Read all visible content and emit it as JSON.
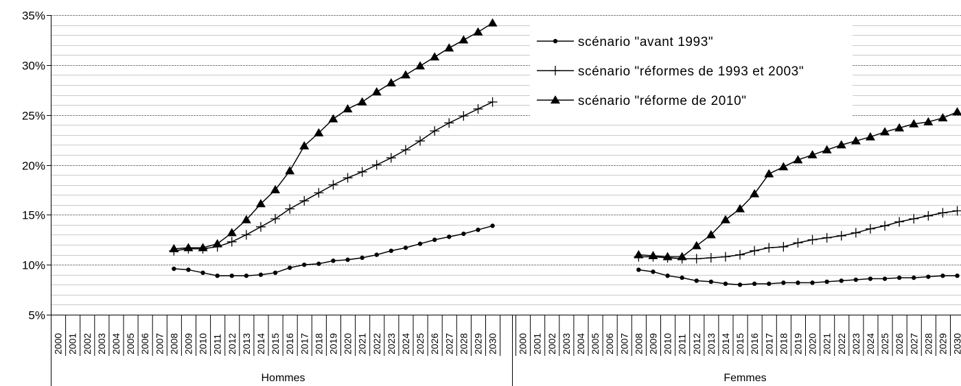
{
  "chart_data": {
    "type": "line",
    "title": "",
    "xlabel": "",
    "ylabel": "",
    "ylim": [
      5,
      35
    ],
    "y_ticks": [
      "5%",
      "10%",
      "15%",
      "20%",
      "25%",
      "30%",
      "35%"
    ],
    "y_tick_values": [
      5,
      10,
      15,
      20,
      25,
      30,
      35
    ],
    "minor_grid_step": 1,
    "grid": true,
    "legend_position": "top-right",
    "groups": [
      {
        "name": "Hommes",
        "x": [
          "2000",
          "2001",
          "2002",
          "2003",
          "2004",
          "2005",
          "2006",
          "2007",
          "2008",
          "2009",
          "2010",
          "2011",
          "2012",
          "2013",
          "2014",
          "2015",
          "2016",
          "2017",
          "2018",
          "2019",
          "2020",
          "2021",
          "2022",
          "2023",
          "2024",
          "2025",
          "2026",
          "2027",
          "2028",
          "2029",
          "2030"
        ],
        "series": [
          {
            "name": "scénario \"avant 1993\"",
            "marker": "dot",
            "values": [
              null,
              null,
              null,
              null,
              null,
              null,
              null,
              null,
              9.6,
              9.5,
              9.2,
              8.9,
              8.9,
              8.9,
              9.0,
              9.2,
              9.7,
              10.0,
              10.1,
              10.4,
              10.5,
              10.7,
              11.0,
              11.4,
              11.7,
              12.1,
              12.5,
              12.8,
              13.1,
              13.5,
              13.9
            ]
          },
          {
            "name": "scénario \"réformes de 1993 et 2003\"",
            "marker": "plus",
            "values": [
              null,
              null,
              null,
              null,
              null,
              null,
              null,
              null,
              11.4,
              11.6,
              11.6,
              11.8,
              12.3,
              13.0,
              13.8,
              14.6,
              15.6,
              16.4,
              17.2,
              18.0,
              18.7,
              19.3,
              20.0,
              20.7,
              21.5,
              22.4,
              23.4,
              24.2,
              24.9,
              25.6,
              26.3
            ]
          },
          {
            "name": "scénario \"réforme de 2010\"",
            "marker": "triangle",
            "values": [
              null,
              null,
              null,
              null,
              null,
              null,
              null,
              null,
              11.6,
              11.7,
              11.7,
              12.1,
              13.2,
              14.5,
              16.1,
              17.5,
              19.4,
              21.9,
              23.2,
              24.6,
              25.6,
              26.3,
              27.3,
              28.2,
              29.0,
              29.9,
              30.8,
              31.7,
              32.5,
              33.3,
              34.2
            ]
          }
        ]
      },
      {
        "name": "Femmes",
        "x": [
          "2000",
          "2001",
          "2002",
          "2003",
          "2004",
          "2005",
          "2006",
          "2007",
          "2008",
          "2009",
          "2010",
          "2011",
          "2012",
          "2013",
          "2014",
          "2015",
          "2016",
          "2017",
          "2018",
          "2019",
          "2020",
          "2021",
          "2022",
          "2023",
          "2024",
          "2025",
          "2026",
          "2027",
          "2028",
          "2029",
          "2030"
        ],
        "series": [
          {
            "name": "scénario \"avant 1993\"",
            "marker": "dot",
            "values": [
              null,
              null,
              null,
              null,
              null,
              null,
              null,
              null,
              9.5,
              9.3,
              8.9,
              8.7,
              8.4,
              8.3,
              8.1,
              8.0,
              8.1,
              8.1,
              8.2,
              8.2,
              8.2,
              8.3,
              8.4,
              8.5,
              8.6,
              8.6,
              8.7,
              8.7,
              8.8,
              8.9,
              8.9
            ]
          },
          {
            "name": "scénario \"réformes de 1993 et 2003\"",
            "marker": "plus",
            "values": [
              null,
              null,
              null,
              null,
              null,
              null,
              null,
              null,
              10.8,
              10.8,
              10.7,
              10.6,
              10.6,
              10.7,
              10.8,
              11.0,
              11.4,
              11.7,
              11.8,
              12.2,
              12.5,
              12.7,
              12.9,
              13.2,
              13.6,
              13.9,
              14.3,
              14.6,
              14.9,
              15.2,
              15.4
            ]
          },
          {
            "name": "scénario \"réforme de 2010\"",
            "marker": "triangle",
            "values": [
              null,
              null,
              null,
              null,
              null,
              null,
              null,
              null,
              11.0,
              10.9,
              10.8,
              10.8,
              11.9,
              13.0,
              14.5,
              15.6,
              17.1,
              19.1,
              19.8,
              20.5,
              21.0,
              21.5,
              22.0,
              22.4,
              22.8,
              23.3,
              23.7,
              24.1,
              24.3,
              24.7,
              25.3
            ]
          }
        ]
      }
    ]
  }
}
